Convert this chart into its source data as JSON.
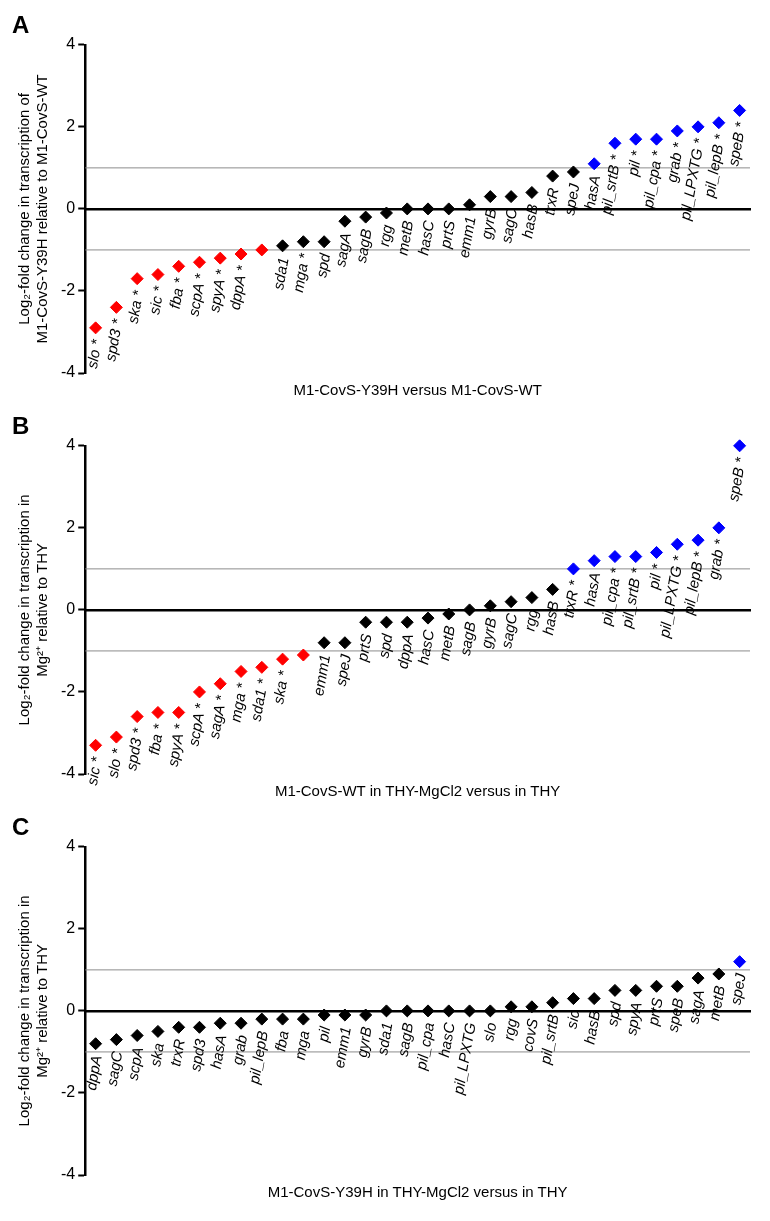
{
  "chart_data": [
    {
      "type": "scatter",
      "title": "A",
      "ylabel": "Log₂-fold change in transcription of M1-CovS-Y39H relative to M1-CovS-WT",
      "xlabel": "M1-CovS-Y39H versus M1-CovS-WT",
      "marker": "diamond",
      "legend": false,
      "tick_labels": "y",
      "ylim": [
        -4,
        4
      ],
      "yticks": [
        -4,
        -2,
        0,
        2,
        4
      ],
      "ref_lines": [
        {
          "axis": "y",
          "value": 1,
          "color": "#8c8c8c"
        },
        {
          "axis": "y",
          "value": -1,
          "color": "#8c8c8c"
        }
      ],
      "categories": [
        "slo *",
        "spd3 *",
        "ska *",
        "sic *",
        "fba *",
        "scpA *",
        "spyA *",
        "dppA *",
        null,
        "sda1",
        "mga *",
        "spd",
        "sagA",
        "sagB",
        "rgg",
        "metB",
        "hasC",
        "prtS",
        "emm1",
        "gyrB",
        "sagC",
        "hasB",
        "trxR",
        "speJ",
        "hasA",
        "pil_srtB *",
        "pil *",
        "pil_cpa *",
        "grab *",
        "pil_LPXTG *",
        "pil_lepB *",
        "speB *"
      ],
      "values": [
        -2.9,
        -2.4,
        -1.7,
        -1.6,
        -1.4,
        -1.3,
        -1.2,
        -1.1,
        -1.0,
        -0.9,
        -0.8,
        -0.8,
        -0.3,
        -0.2,
        -0.1,
        0.0,
        0.0,
        0.0,
        0.1,
        0.3,
        0.3,
        0.4,
        0.8,
        0.9,
        1.1,
        1.6,
        1.7,
        1.7,
        1.9,
        2.0,
        2.1,
        2.4
      ],
      "colors": [
        "#ff0000",
        "#ff0000",
        "#ff0000",
        "#ff0000",
        "#ff0000",
        "#ff0000",
        "#ff0000",
        "#ff0000",
        "#ff0000",
        "#000000",
        "#000000",
        "#000000",
        "#000000",
        "#000000",
        "#000000",
        "#000000",
        "#000000",
        "#000000",
        "#000000",
        "#000000",
        "#000000",
        "#000000",
        "#000000",
        "#000000",
        "#0000ff",
        "#0000ff",
        "#0000ff",
        "#0000ff",
        "#0000ff",
        "#0000ff",
        "#0000ff",
        "#0000ff"
      ]
    },
    {
      "type": "scatter",
      "title": "B",
      "ylabel": "Log₂-fold change in transcription in Mg²⁺ relative to THY",
      "xlabel": "M1-CovS-WT in THY-MgCl2 versus in THY",
      "marker": "diamond",
      "legend": false,
      "tick_labels": "y",
      "ylim": [
        -4,
        4
      ],
      "yticks": [
        -4,
        -2,
        0,
        2,
        4
      ],
      "ref_lines": [
        {
          "axis": "y",
          "value": 1,
          "color": "#8c8c8c"
        },
        {
          "axis": "y",
          "value": -1,
          "color": "#8c8c8c"
        }
      ],
      "categories": [
        "sic *",
        "slo *",
        "spd3 *",
        "fba *",
        "spyA *",
        "scpA *",
        "sagA *",
        "mga *",
        "sda1 *",
        "ska *",
        null,
        "emm1",
        "speJ",
        "prtS",
        "spd",
        "dppA",
        "hasC",
        "metB",
        "sagB",
        "gyrB",
        "sagC",
        "rgg",
        "hasB",
        "trxR *",
        "hasA",
        "pil_cpa *",
        "pil_srtB *",
        "pil *",
        "pil_LPXTG *",
        "pil_lepB *",
        "grab *",
        "speB *"
      ],
      "values": [
        -3.3,
        -3.1,
        -2.6,
        -2.5,
        -2.5,
        -2.0,
        -1.8,
        -1.5,
        -1.4,
        -1.2,
        -1.1,
        -0.8,
        -0.8,
        -0.3,
        -0.3,
        -0.3,
        -0.2,
        -0.1,
        0.0,
        0.1,
        0.2,
        0.3,
        0.5,
        1.0,
        1.2,
        1.3,
        1.3,
        1.4,
        1.6,
        1.7,
        2.0,
        4.0
      ],
      "colors": [
        "#ff0000",
        "#ff0000",
        "#ff0000",
        "#ff0000",
        "#ff0000",
        "#ff0000",
        "#ff0000",
        "#ff0000",
        "#ff0000",
        "#ff0000",
        "#ff0000",
        "#000000",
        "#000000",
        "#000000",
        "#000000",
        "#000000",
        "#000000",
        "#000000",
        "#000000",
        "#000000",
        "#000000",
        "#000000",
        "#000000",
        "#0000ff",
        "#0000ff",
        "#0000ff",
        "#0000ff",
        "#0000ff",
        "#0000ff",
        "#0000ff",
        "#0000ff",
        "#0000ff"
      ]
    },
    {
      "type": "scatter",
      "title": "C",
      "ylabel": "Log₂-fold change in transcription in Mg²⁺ relative to THY",
      "xlabel": "M1-CovS-Y39H in THY-MgCl2 versus in THY",
      "marker": "diamond",
      "legend": false,
      "tick_labels": "y",
      "ylim": [
        -4,
        4
      ],
      "yticks": [
        -4,
        -2,
        0,
        2,
        4
      ],
      "ref_lines": [
        {
          "axis": "y",
          "value": 1,
          "color": "#8c8c8c"
        },
        {
          "axis": "y",
          "value": -1,
          "color": "#8c8c8c"
        }
      ],
      "categories": [
        "dppA",
        "sagC",
        "scpA",
        "ska",
        "trxR",
        "spd3",
        "hasA",
        "grab",
        "pil_lepB",
        "fba",
        "mga",
        "pil",
        "emm1",
        "gyrB",
        "sda1",
        "sagB",
        "pil_cpa",
        "hasC",
        "pil_LPXTG",
        "slo",
        "rgg",
        "covS",
        "pil_srtB",
        "sic",
        "hasB",
        "spd",
        "spyA",
        "prtS",
        "speB",
        "sagA",
        "metB",
        "speJ"
      ],
      "values": [
        -0.8,
        -0.7,
        -0.6,
        -0.5,
        -0.4,
        -0.4,
        -0.3,
        -0.3,
        -0.2,
        -0.2,
        -0.2,
        -0.1,
        -0.1,
        -0.1,
        0.0,
        0.0,
        0.0,
        0.0,
        0.0,
        0.0,
        0.1,
        0.1,
        0.2,
        0.3,
        0.3,
        0.5,
        0.5,
        0.6,
        0.6,
        0.8,
        0.9,
        1.2
      ],
      "colors": [
        "#000000",
        "#000000",
        "#000000",
        "#000000",
        "#000000",
        "#000000",
        "#000000",
        "#000000",
        "#000000",
        "#000000",
        "#000000",
        "#000000",
        "#000000",
        "#000000",
        "#000000",
        "#000000",
        "#000000",
        "#000000",
        "#000000",
        "#000000",
        "#000000",
        "#000000",
        "#000000",
        "#000000",
        "#000000",
        "#000000",
        "#000000",
        "#000000",
        "#000000",
        "#000000",
        "#000000",
        "#0000ff"
      ]
    }
  ]
}
